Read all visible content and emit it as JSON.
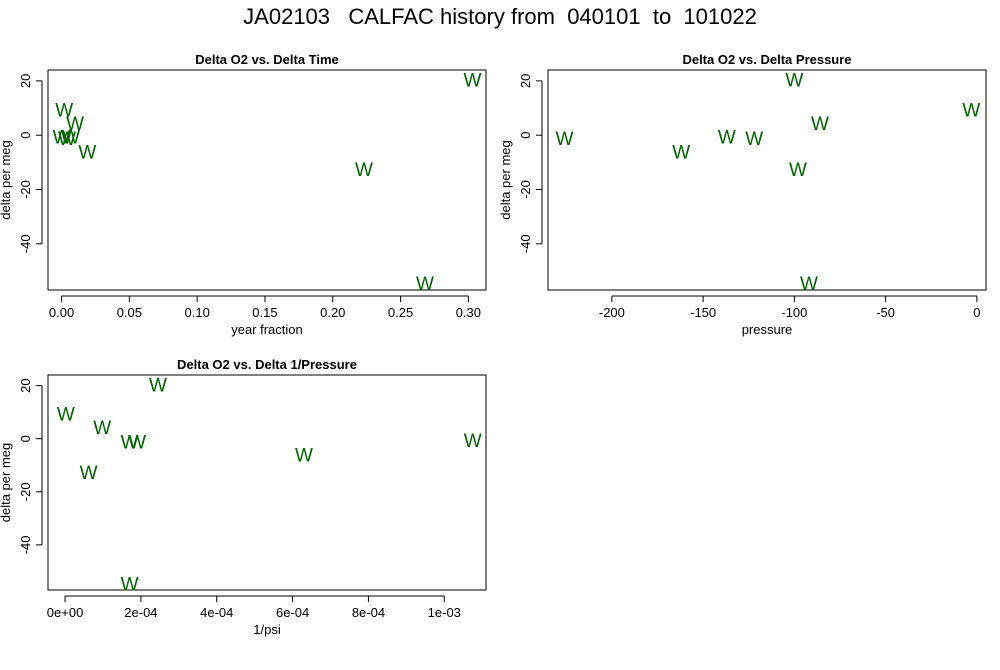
{
  "title": "JA02103   CALFAC history from  040101  to  101022",
  "colors": {
    "points": "#006400",
    "axis": "#000000"
  },
  "chart_data": [
    {
      "type": "scatter",
      "title": "Delta O2 vs. Delta Time",
      "xlabel": "year fraction",
      "ylabel": "delta per meg",
      "marker": "W",
      "xlim": [
        -0.01,
        0.313
      ],
      "ylim": [
        -57,
        24
      ],
      "xticks": [
        0.0,
        0.05,
        0.1,
        0.15,
        0.2,
        0.25,
        0.3
      ],
      "xtick_labels": [
        "0.00",
        "0.05",
        "0.10",
        "0.15",
        "0.20",
        "0.25",
        "0.30"
      ],
      "yticks": [
        -40,
        -20,
        0,
        20
      ],
      "ytick_labels": [
        "-40",
        "-20",
        "0",
        "20"
      ],
      "points": [
        {
          "x": 0.002,
          "y": 9.5
        },
        {
          "x": 0.01,
          "y": 4.5
        },
        {
          "x": 0.0,
          "y": -0.5
        },
        {
          "x": 0.004,
          "y": -1.0
        },
        {
          "x": 0.007,
          "y": -0.5
        },
        {
          "x": 0.019,
          "y": -6.0
        },
        {
          "x": 0.223,
          "y": -12.5
        },
        {
          "x": 0.268,
          "y": -54.5
        },
        {
          "x": 0.303,
          "y": 20.5
        }
      ]
    },
    {
      "type": "scatter",
      "title": "Delta O2 vs. Delta Pressure",
      "xlabel": "pressure",
      "ylabel": "delta per meg",
      "marker": "W",
      "xlim": [
        -235,
        5
      ],
      "ylim": [
        -57,
        24
      ],
      "xticks": [
        -200,
        -150,
        -100,
        -50,
        0
      ],
      "xtick_labels": [
        "-200",
        "-150",
        "-100",
        "-50",
        "0"
      ],
      "yticks": [
        -40,
        -20,
        0,
        20
      ],
      "ytick_labels": [
        "-40",
        "-20",
        "0",
        "20"
      ],
      "points": [
        {
          "x": -226,
          "y": -1.0
        },
        {
          "x": -162,
          "y": -6.0
        },
        {
          "x": -137,
          "y": -0.5
        },
        {
          "x": -122,
          "y": -1.0
        },
        {
          "x": -100,
          "y": 20.5
        },
        {
          "x": -98,
          "y": -12.5
        },
        {
          "x": -86,
          "y": 4.5
        },
        {
          "x": -92,
          "y": -54.5
        },
        {
          "x": -3,
          "y": 9.5
        }
      ]
    },
    {
      "type": "scatter",
      "title": "Delta O2 vs. Delta 1/Pressure",
      "xlabel": "1/psi",
      "ylabel": "delta per meg",
      "marker": "W",
      "xlim": [
        -4.5e-05,
        0.00111
      ],
      "ylim": [
        -57,
        24
      ],
      "xticks": [
        0,
        0.0002,
        0.0004,
        0.0006,
        0.0008,
        0.001
      ],
      "xtick_labels": [
        "0e+00",
        "2e-04",
        "4e-04",
        "6e-04",
        "8e-04",
        "1e-03"
      ],
      "yticks": [
        -40,
        -20,
        0,
        20
      ],
      "ytick_labels": [
        "-40",
        "-20",
        "0",
        "20"
      ],
      "points": [
        {
          "x": 2e-06,
          "y": 9.5
        },
        {
          "x": 9.8e-05,
          "y": 4.5
        },
        {
          "x": 6.2e-05,
          "y": -12.5
        },
        {
          "x": 0.00017,
          "y": -1.0
        },
        {
          "x": 0.00019,
          "y": -1.0
        },
        {
          "x": 0.000245,
          "y": 20.5
        },
        {
          "x": 0.00063,
          "y": -6.0
        },
        {
          "x": 0.001075,
          "y": -0.5
        },
        {
          "x": 0.00017,
          "y": -54.5
        }
      ]
    }
  ]
}
